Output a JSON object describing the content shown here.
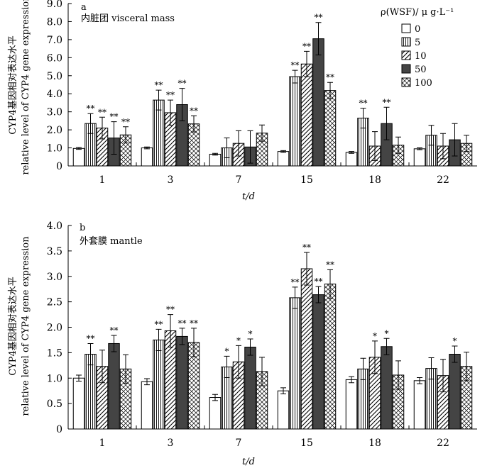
{
  "legend": {
    "title": "ρ(WSF)/ μ g·L⁻¹",
    "items": [
      "0",
      "5",
      "10",
      "50",
      "100"
    ]
  },
  "x_axis_label": "t/d",
  "chart_data": [
    {
      "type": "bar",
      "panel_letter": "a",
      "title": "内脏团 visceral mass",
      "ylabel_cn": "CYP4基因相对表达水平",
      "ylabel_en": "relative level of CYP4 gene expression",
      "xlabel": "t/d",
      "ylim": [
        0,
        9
      ],
      "yticks": [
        "0",
        "1.0",
        "2.0",
        "3.0",
        "4.0",
        "5.0",
        "6.0",
        "7.0",
        "8.0",
        "9.0"
      ],
      "categories": [
        "1",
        "3",
        "7",
        "15",
        "18",
        "22"
      ],
      "legend_position": "top-right",
      "series": [
        {
          "name": "0",
          "values": [
            0.97,
            1.0,
            0.65,
            0.8,
            0.75,
            0.95
          ],
          "errors": [
            0.05,
            0.05,
            0.05,
            0.05,
            0.05,
            0.05
          ],
          "marks": [
            "",
            "",
            "",
            "",
            "",
            ""
          ]
        },
        {
          "name": "5",
          "values": [
            2.35,
            3.65,
            1.0,
            4.95,
            2.65,
            1.7
          ],
          "errors": [
            0.55,
            0.55,
            0.55,
            0.35,
            0.55,
            0.55
          ],
          "marks": [
            "**",
            "**",
            "",
            "**",
            "**",
            ""
          ]
        },
        {
          "name": "10",
          "values": [
            2.1,
            2.95,
            1.25,
            5.65,
            1.1,
            1.1
          ],
          "errors": [
            0.6,
            0.7,
            0.7,
            0.7,
            0.8,
            0.7
          ],
          "marks": [
            "**",
            "**",
            "",
            "**",
            "",
            ""
          ]
        },
        {
          "name": "50",
          "values": [
            1.55,
            3.4,
            1.05,
            7.05,
            2.35,
            1.45
          ],
          "errors": [
            0.9,
            0.9,
            0.9,
            0.9,
            0.9,
            0.9
          ],
          "marks": [
            "**",
            "**",
            "",
            "**",
            "**",
            ""
          ]
        },
        {
          "name": "100",
          "values": [
            1.72,
            2.33,
            1.82,
            4.18,
            1.15,
            1.25
          ],
          "errors": [
            0.45,
            0.45,
            0.45,
            0.45,
            0.45,
            0.45
          ],
          "marks": [
            "**",
            "**",
            "",
            "**",
            "",
            ""
          ]
        }
      ]
    },
    {
      "type": "bar",
      "panel_letter": "b",
      "title": "外套膜 mantle",
      "ylabel_cn": "CYP4基因相对表达水平",
      "ylabel_en": "relative level of CYP4 gene expression",
      "xlabel": "t/d",
      "ylim": [
        0,
        4
      ],
      "yticks": [
        "0",
        "0.5",
        "1.0",
        "1.5",
        "2.0",
        "2.5",
        "3.0",
        "3.5",
        "4.0"
      ],
      "categories": [
        "1",
        "3",
        "7",
        "15",
        "18",
        "22"
      ],
      "series": [
        {
          "name": "0",
          "values": [
            1.0,
            0.93,
            0.62,
            0.75,
            0.97,
            0.95
          ],
          "errors": [
            0.06,
            0.06,
            0.06,
            0.06,
            0.06,
            0.06
          ],
          "marks": [
            "",
            "",
            "",
            "",
            "",
            ""
          ]
        },
        {
          "name": "5",
          "values": [
            1.47,
            1.75,
            1.22,
            2.58,
            1.18,
            1.19
          ],
          "errors": [
            0.21,
            0.21,
            0.21,
            0.21,
            0.21,
            0.21
          ],
          "marks": [
            "**",
            "**",
            "*",
            "**",
            "",
            ""
          ]
        },
        {
          "name": "10",
          "values": [
            1.23,
            1.93,
            1.32,
            3.15,
            1.41,
            1.05
          ],
          "errors": [
            0.32,
            0.32,
            0.32,
            0.32,
            0.32,
            0.32
          ],
          "marks": [
            "",
            "**",
            "*",
            "**",
            "*",
            ""
          ]
        },
        {
          "name": "50",
          "values": [
            1.68,
            1.82,
            1.61,
            2.64,
            1.62,
            1.47
          ],
          "errors": [
            0.16,
            0.16,
            0.16,
            0.16,
            0.16,
            0.16
          ],
          "marks": [
            "**",
            "**",
            "*",
            "**",
            "*",
            "*"
          ]
        },
        {
          "name": "100",
          "values": [
            1.18,
            1.7,
            1.13,
            2.85,
            1.06,
            1.23
          ],
          "errors": [
            0.28,
            0.28,
            0.28,
            0.28,
            0.28,
            0.28
          ],
          "marks": [
            "",
            "**",
            "",
            "**",
            "",
            ""
          ]
        }
      ]
    }
  ]
}
